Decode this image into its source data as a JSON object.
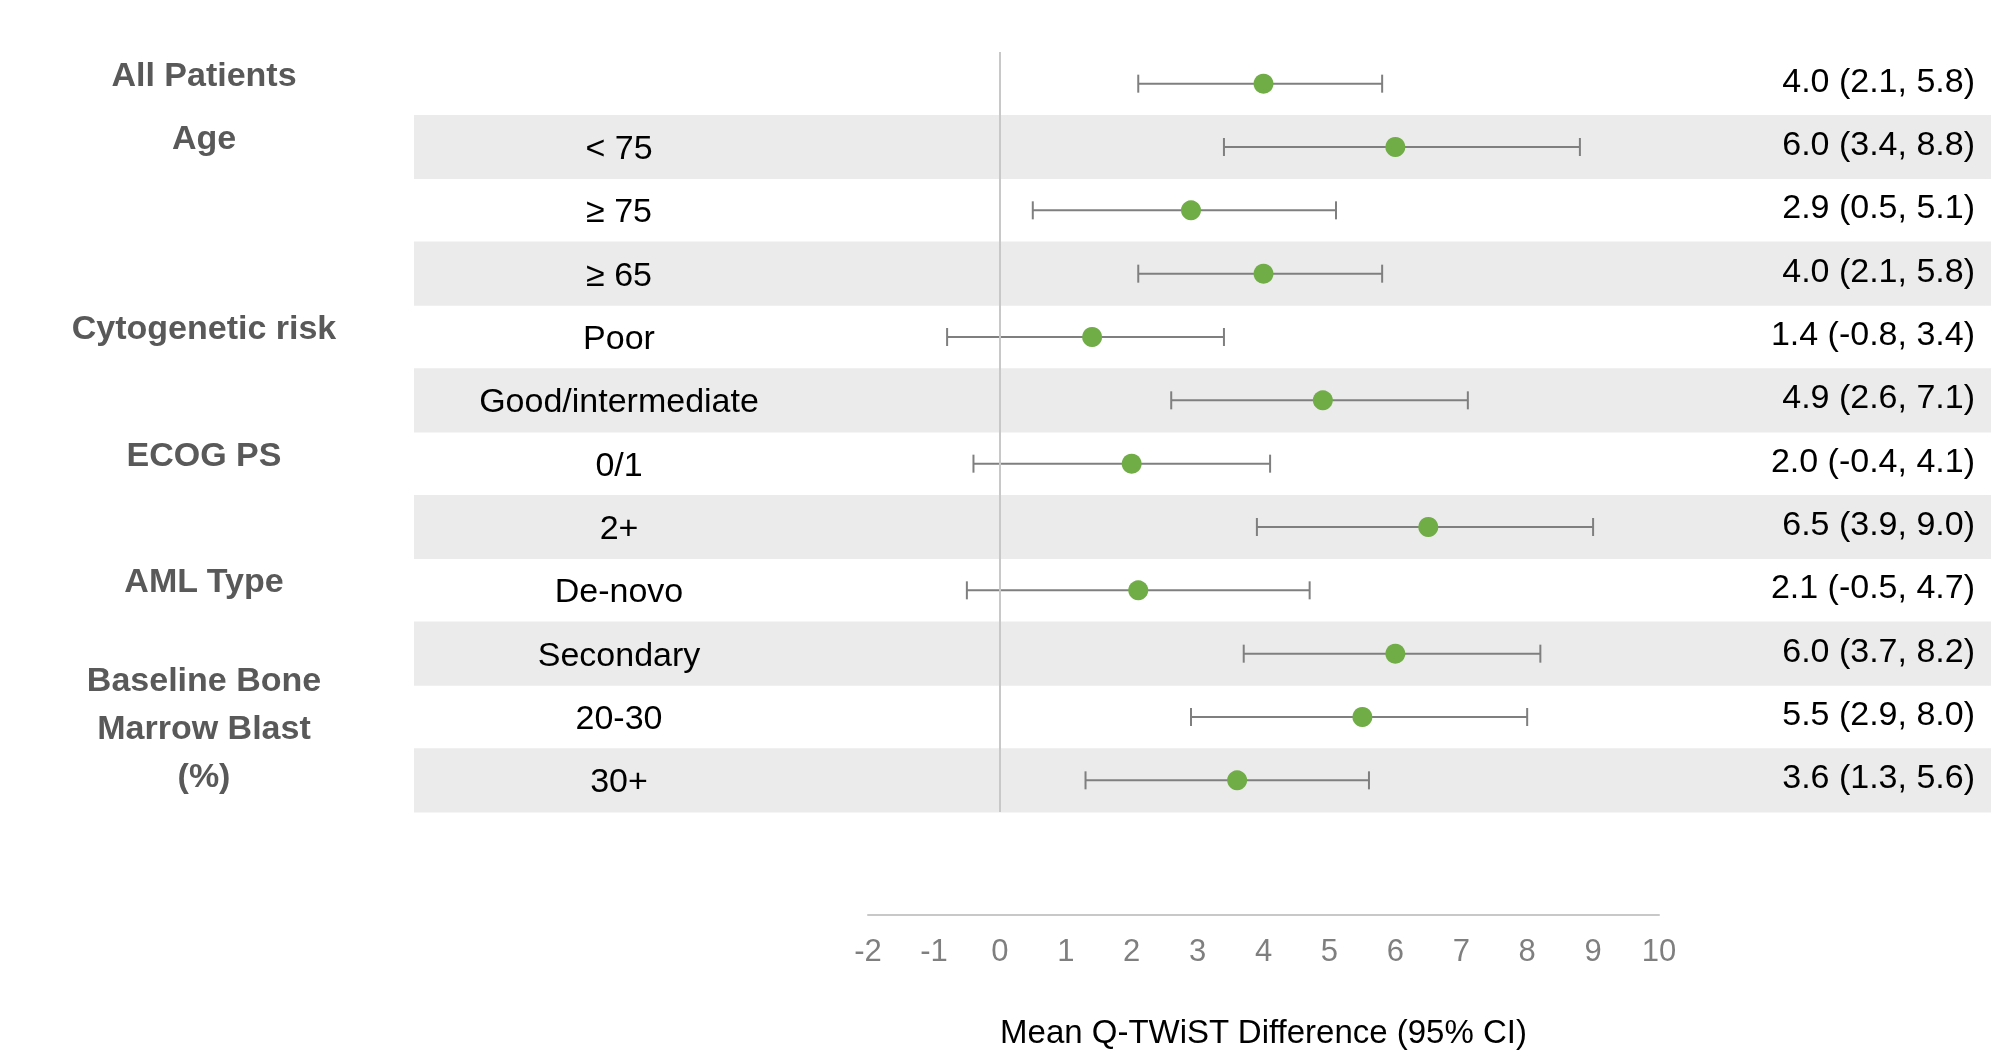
{
  "chart_data": {
    "type": "scatter",
    "orientation": "horizontal",
    "xlabel": "Mean Q-TWiST Difference (95% CI)",
    "categories": [
      null,
      "< 75",
      "≥ 75",
      "≥ 65",
      "Poor",
      "Good/intermediate",
      "0/1",
      "2+",
      "De-novo",
      "Secondary",
      "20-30",
      "30+"
    ],
    "values": [
      4.0,
      6.0,
      2.9,
      4.0,
      1.4,
      4.9,
      2.0,
      6.5,
      2.1,
      6.0,
      5.5,
      3.6
    ],
    "errors": [
      [
        2.1,
        5.8
      ],
      [
        3.4,
        8.8
      ],
      [
        0.5,
        5.1
      ],
      [
        2.1,
        5.8
      ],
      [
        -0.8,
        3.4
      ],
      [
        2.6,
        7.1
      ],
      [
        -0.4,
        4.1
      ],
      [
        3.9,
        9.0
      ],
      [
        -0.5,
        4.7
      ],
      [
        3.7,
        8.2
      ],
      [
        2.9,
        8.0
      ],
      [
        1.3,
        5.6
      ]
    ],
    "value_labels": [
      "4.0 (2.1, 5.8)",
      "6.0 (3.4, 8.8)",
      "2.9 (0.5, 5.1)",
      "4.0 (2.1, 5.8)",
      "1.4 (-0.8, 3.4)",
      "4.9 (2.6, 7.1)",
      "2.0 (-0.4, 4.1)",
      "6.5 (3.9, 9.0)",
      "2.1 (-0.5, 4.7)",
      "6.0 (3.7, 8.2)",
      "5.5 (2.9, 8.0)",
      "3.6 (1.3, 5.6)"
    ],
    "color": "#70ad47",
    "marker": "circle",
    "xlim": [
      -2,
      10
    ],
    "xticks": [
      -2,
      -1,
      0,
      1,
      2,
      3,
      4,
      5,
      6,
      7,
      8,
      9,
      10
    ],
    "grid": false,
    "ref_lines": [
      {
        "axis": "x",
        "value": 0,
        "color": "#c8c8c8"
      }
    ],
    "bands": [
      {
        "axis": "y",
        "from": "< 75",
        "to": "< 75",
        "color": "#ebebeb"
      },
      {
        "axis": "y",
        "from": "≥ 65",
        "to": "≥ 65",
        "color": "#ebebeb"
      },
      {
        "axis": "y",
        "from": "Good/intermediate",
        "to": "Good/intermediate",
        "color": "#ebebeb"
      },
      {
        "axis": "y",
        "from": "2+",
        "to": "2+",
        "color": "#ebebeb"
      },
      {
        "axis": "y",
        "from": "Secondary",
        "to": "Secondary",
        "color": "#ebebeb"
      },
      {
        "axis": "y",
        "from": "30+",
        "to": "30+",
        "color": "#ebebeb"
      }
    ],
    "annotations": [
      "All Patients",
      "Age",
      "Cytogenetic risk",
      "ECOG PS",
      "AML Type",
      "Baseline Bone\nMarrow Blast\n(%)"
    ]
  }
}
